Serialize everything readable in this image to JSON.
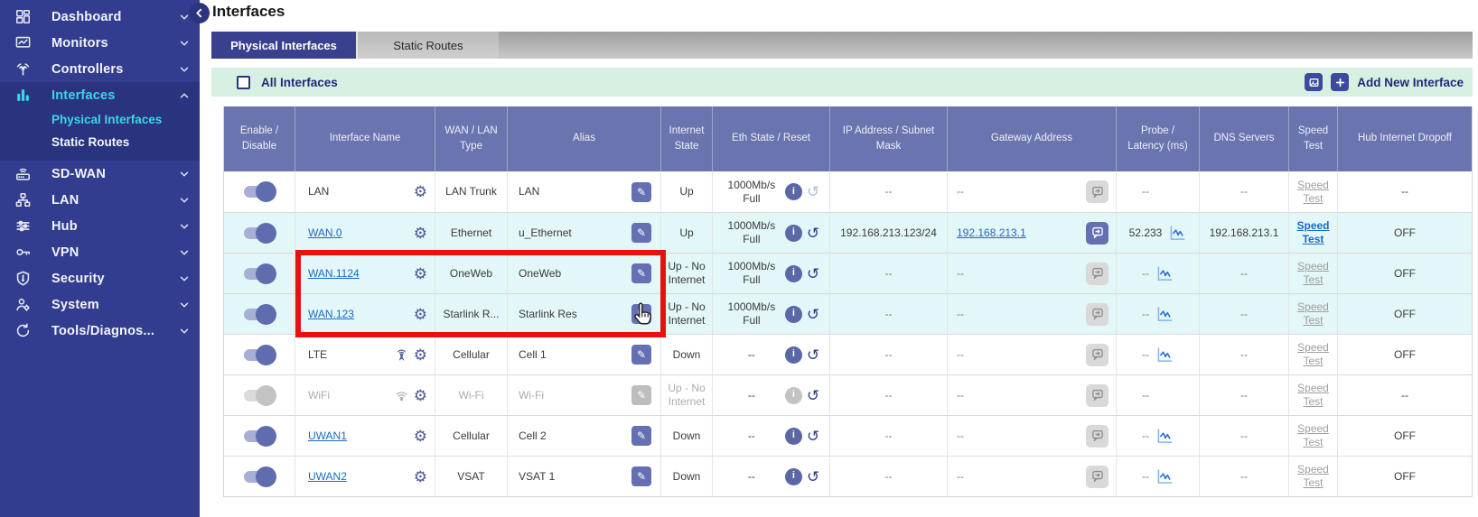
{
  "colors": {
    "sidebar_bg": "#333D8F",
    "sidebar_group_bg": "#2A337E",
    "accent_cyan": "#3BD6E4",
    "tab_active_bg": "#39418F",
    "toolbar_bg": "#D8F0E1",
    "table_header_bg": "#6A75AF",
    "row_highlight": "#E3F6F8",
    "link_blue": "#1B6AC9",
    "annotation_red": "#E81111"
  },
  "sidebar": {
    "items": [
      {
        "label": "Dashboard",
        "icon": "dashboard-icon",
        "active": false,
        "expanded": false
      },
      {
        "label": "Monitors",
        "icon": "monitors-icon",
        "active": false,
        "expanded": false
      },
      {
        "label": "Controllers",
        "icon": "controllers-icon",
        "active": false,
        "expanded": false
      },
      {
        "label": "Interfaces",
        "icon": "interfaces-icon",
        "active": true,
        "expanded": true,
        "children": [
          {
            "label": "Physical Interfaces",
            "active": true
          },
          {
            "label": "Static Routes",
            "active": false
          }
        ]
      },
      {
        "label": "SD-WAN",
        "icon": "sdwan-icon",
        "active": false,
        "expanded": false
      },
      {
        "label": "LAN",
        "icon": "lan-icon",
        "active": false,
        "expanded": false
      },
      {
        "label": "Hub",
        "icon": "hub-icon",
        "active": false,
        "expanded": false
      },
      {
        "label": "VPN",
        "icon": "vpn-icon",
        "active": false,
        "expanded": false
      },
      {
        "label": "Security",
        "icon": "security-icon",
        "active": false,
        "expanded": false
      },
      {
        "label": "System",
        "icon": "system-icon",
        "active": false,
        "expanded": false
      },
      {
        "label": "Tools/Diagnos...",
        "icon": "tools-icon",
        "active": false,
        "expanded": false
      }
    ]
  },
  "header": {
    "title": "Interfaces"
  },
  "tabs": [
    {
      "label": "Physical Interfaces",
      "active": true
    },
    {
      "label": "Static Routes",
      "active": false
    }
  ],
  "toolbar": {
    "select_all_label": "All Interfaces",
    "add_button_label": "Add New Interface"
  },
  "table": {
    "columns": [
      "Enable / Disable",
      "Interface Name",
      "WAN / LAN Type",
      "Alias",
      "Internet State",
      "Eth State / Reset",
      "IP Address / Subnet Mask",
      "Gateway Address",
      "Probe / Latency (ms)",
      "DNS Servers",
      "Speed Test",
      "Hub Internet Dropoff"
    ],
    "rows": [
      {
        "name": "LAN",
        "name_link": false,
        "name_icon": null,
        "type": "LAN Trunk",
        "alias": "LAN",
        "internet_state": "Up",
        "eth_state": "1000Mb/s Full",
        "ip": "--",
        "gateway": "--",
        "gateway_link": false,
        "gateway_active": false,
        "probe": "--",
        "probe_chart": false,
        "dns": "--",
        "speed_test": "Speed Test",
        "speed_test_active": false,
        "hub_dropoff": "--",
        "enabled": true,
        "reset_disabled": true,
        "bg": "#FFFFFF"
      },
      {
        "name": "WAN.0",
        "name_link": true,
        "name_icon": null,
        "type": "Ethernet",
        "alias": "u_Ethernet",
        "internet_state": "Up",
        "eth_state": "1000Mb/s Full",
        "ip": "192.168.213.123/24",
        "gateway": "192.168.213.1",
        "gateway_link": true,
        "gateway_active": true,
        "probe": "52.233",
        "probe_chart": true,
        "dns": "192.168.213.1",
        "speed_test": "Speed Test",
        "speed_test_active": true,
        "hub_dropoff": "OFF",
        "enabled": true,
        "reset_disabled": false,
        "bg": "#E3F6F8"
      },
      {
        "name": "WAN.1124",
        "name_link": true,
        "name_icon": null,
        "type": "OneWeb",
        "alias": "OneWeb",
        "internet_state": "Up - No Internet",
        "eth_state": "1000Mb/s Full",
        "ip": "--",
        "gateway": "--",
        "gateway_link": false,
        "gateway_active": false,
        "probe": "--",
        "probe_chart": true,
        "dns": "--",
        "speed_test": "Speed Test",
        "speed_test_active": false,
        "hub_dropoff": "OFF",
        "enabled": true,
        "reset_disabled": false,
        "bg": "#E3F6F8"
      },
      {
        "name": "WAN.123",
        "name_link": true,
        "name_icon": null,
        "type": "Starlink R...",
        "alias": "Starlink Res",
        "internet_state": "Up - No Internet",
        "eth_state": "1000Mb/s Full",
        "ip": "--",
        "gateway": "--",
        "gateway_link": false,
        "gateway_active": false,
        "probe": "--",
        "probe_chart": true,
        "dns": "--",
        "speed_test": "Speed Test",
        "speed_test_active": false,
        "hub_dropoff": "OFF",
        "enabled": true,
        "reset_disabled": false,
        "bg": "#E3F6F8"
      },
      {
        "name": "LTE",
        "name_link": false,
        "name_icon": "antenna",
        "type": "Cellular",
        "alias": "Cell 1",
        "internet_state": "Down",
        "eth_state": "--",
        "ip": "--",
        "gateway": "--",
        "gateway_link": false,
        "gateway_active": false,
        "probe": "--",
        "probe_chart": true,
        "dns": "--",
        "speed_test": "Speed Test",
        "speed_test_active": false,
        "hub_dropoff": "OFF",
        "enabled": true,
        "reset_disabled": false,
        "bg": "#FFFFFF"
      },
      {
        "name": "WiFi",
        "name_link": false,
        "name_icon": "wifi",
        "type": "Wi-Fi",
        "alias": "Wi-Fi",
        "internet_state": "Up - No Internet",
        "eth_state": "--",
        "ip": "--",
        "gateway": "--",
        "gateway_link": false,
        "gateway_active": false,
        "probe": "--",
        "probe_chart": false,
        "dns": "--",
        "speed_test": "Speed Test",
        "speed_test_active": false,
        "hub_dropoff": "--",
        "enabled": false,
        "reset_disabled": false,
        "bg": "#FFFFFF"
      },
      {
        "name": "UWAN1",
        "name_link": true,
        "name_icon": null,
        "type": "Cellular",
        "alias": "Cell 2",
        "internet_state": "Down",
        "eth_state": "--",
        "ip": "--",
        "gateway": "--",
        "gateway_link": false,
        "gateway_active": false,
        "probe": "--",
        "probe_chart": true,
        "dns": "--",
        "speed_test": "Speed Test",
        "speed_test_active": false,
        "hub_dropoff": "OFF",
        "enabled": true,
        "reset_disabled": false,
        "bg": "#FFFFFF"
      },
      {
        "name": "UWAN2",
        "name_link": true,
        "name_icon": null,
        "type": "VSAT",
        "alias": "VSAT 1",
        "internet_state": "Down",
        "eth_state": "--",
        "ip": "--",
        "gateway": "--",
        "gateway_link": false,
        "gateway_active": false,
        "probe": "--",
        "probe_chart": true,
        "dns": "--",
        "speed_test": "Speed Test",
        "speed_test_active": false,
        "hub_dropoff": "OFF",
        "enabled": true,
        "reset_disabled": false,
        "bg": "#FFFFFF"
      }
    ]
  }
}
